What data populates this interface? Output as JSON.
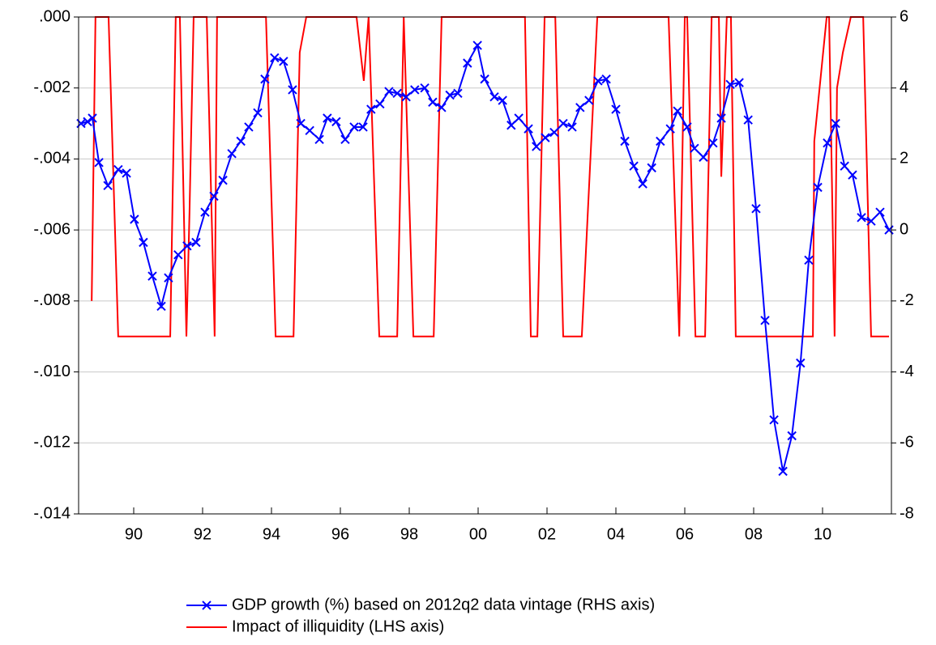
{
  "chart_data": {
    "type": "line",
    "xlim": [
      1988.4,
      2012.0
    ],
    "xticks": [
      {
        "value": 1990,
        "label": "90"
      },
      {
        "value": 1992,
        "label": "92"
      },
      {
        "value": 1994,
        "label": "94"
      },
      {
        "value": 1996,
        "label": "96"
      },
      {
        "value": 1998,
        "label": "98"
      },
      {
        "value": 2000,
        "label": "00"
      },
      {
        "value": 2002,
        "label": "02"
      },
      {
        "value": 2004,
        "label": "04"
      },
      {
        "value": 2006,
        "label": "06"
      },
      {
        "value": 2008,
        "label": "08"
      },
      {
        "value": 2010,
        "label": "10"
      }
    ],
    "ylim": [
      -0.014,
      0
    ],
    "yticks": [
      {
        "value": 0,
        "label": ".000"
      },
      {
        "value": -0.002,
        "label": "-.002"
      },
      {
        "value": -0.004,
        "label": "-.004"
      },
      {
        "value": -0.006,
        "label": "-.006"
      },
      {
        "value": -0.008,
        "label": "-.008"
      },
      {
        "value": -0.01,
        "label": "-.010"
      },
      {
        "value": -0.012,
        "label": "-.012"
      },
      {
        "value": -0.014,
        "label": "-.014"
      }
    ],
    "y2lim": [
      -8,
      6
    ],
    "y2ticks": [
      6,
      4,
      2,
      0,
      -2,
      -4,
      -6,
      -8
    ],
    "grid": true,
    "series": [
      {
        "name": "GDP growth (%) based on 2012q2 data vintage (RHS axis)",
        "color": "#0000ff",
        "axis": "y2",
        "marker": "x",
        "x": [
          1988.47,
          1988.66,
          1988.8,
          1988.99,
          1989.25,
          1989.55,
          1989.79,
          1990.02,
          1990.28,
          1990.54,
          1990.8,
          1991.01,
          1991.29,
          1991.55,
          1991.81,
          1992.07,
          1992.33,
          1992.59,
          1992.85,
          1993.11,
          1993.34,
          1993.6,
          1993.81,
          1994.09,
          1994.35,
          1994.61,
          1994.85,
          1995.11,
          1995.39,
          1995.62,
          1995.88,
          1996.14,
          1996.4,
          1996.66,
          1996.89,
          1997.15,
          1997.41,
          1997.65,
          1997.91,
          1998.16,
          1998.45,
          1998.68,
          1998.94,
          1999.18,
          1999.41,
          1999.69,
          1999.98,
          2000.19,
          2000.47,
          2000.71,
          2000.96,
          2001.18,
          2001.46,
          2001.69,
          2001.95,
          2002.21,
          2002.47,
          2002.73,
          2002.96,
          2003.22,
          2003.48,
          2003.72,
          2004.0,
          2004.26,
          2004.52,
          2004.78,
          2005.04,
          2005.29,
          2005.58,
          2005.79,
          2006.07,
          2006.28,
          2006.54,
          2006.82,
          2007.06,
          2007.32,
          2007.58,
          2007.84,
          2008.07,
          2008.33,
          2008.59,
          2008.85,
          2009.11,
          2009.36,
          2009.6,
          2009.86,
          2010.14,
          2010.38,
          2010.64,
          2010.87,
          2011.13,
          2011.41,
          2011.67,
          2011.93
        ],
        "values": [
          3.0,
          3.05,
          3.15,
          1.9,
          1.25,
          1.7,
          1.6,
          0.3,
          -0.35,
          -1.3,
          -2.15,
          -1.35,
          -0.7,
          -0.45,
          -0.35,
          0.5,
          0.95,
          1.4,
          2.15,
          2.5,
          2.9,
          3.3,
          4.25,
          4.85,
          4.75,
          3.95,
          3.0,
          2.8,
          2.55,
          3.15,
          3.05,
          2.55,
          2.9,
          2.9,
          3.4,
          3.55,
          3.9,
          3.85,
          3.75,
          3.95,
          4.0,
          3.6,
          3.45,
          3.8,
          3.85,
          4.7,
          5.2,
          4.25,
          3.75,
          3.65,
          2.95,
          3.15,
          2.85,
          2.35,
          2.6,
          2.75,
          3.0,
          2.9,
          3.45,
          3.65,
          4.2,
          4.25,
          3.4,
          2.5,
          1.8,
          1.3,
          1.75,
          2.5,
          2.85,
          3.35,
          2.9,
          2.3,
          2.05,
          2.45,
          3.15,
          4.1,
          4.15,
          3.1,
          0.6,
          -2.55,
          -5.35,
          -6.8,
          -5.8,
          -3.75,
          -0.85,
          1.2,
          2.45,
          3.0,
          1.8,
          1.55,
          0.35,
          0.25,
          0.5,
          0.0
        ]
      },
      {
        "name": "Impact of illiquidity (LHS axis)",
        "color": "#ff0000",
        "axis": "y",
        "x": [
          1988.78,
          1988.89,
          1989.27,
          1989.55,
          1991.06,
          1991.22,
          1991.34,
          1991.53,
          1991.62,
          1991.74,
          1992.12,
          1992.35,
          1992.42,
          1993.84,
          1994.12,
          1994.64,
          1994.82,
          1995.01,
          1996.47,
          1996.68,
          1996.82,
          1997.13,
          1997.65,
          1997.84,
          1998.12,
          1998.71,
          1998.94,
          2001.36,
          2001.53,
          2001.72,
          2001.93,
          2002.24,
          2002.47,
          2003.01,
          2003.46,
          2005.53,
          2005.84,
          2006.0,
          2006.07,
          2006.31,
          2006.59,
          2006.78,
          2006.99,
          2007.06,
          2007.22,
          2007.34,
          2007.48,
          2009.72,
          2009.76,
          2010.12,
          2010.19,
          2010.35,
          2010.42,
          2010.59,
          2010.82,
          2011.18,
          2011.41,
          2011.93
        ],
        "values": [
          -0.008,
          0,
          0,
          -0.009,
          -0.009,
          0,
          0,
          -0.009,
          -0.0055,
          0,
          0,
          -0.009,
          0,
          0,
          -0.009,
          -0.009,
          -0.001,
          0,
          0,
          -0.0018,
          0,
          -0.009,
          -0.009,
          0,
          -0.009,
          -0.009,
          0,
          0,
          -0.009,
          -0.009,
          0,
          0,
          -0.009,
          -0.009,
          0,
          0,
          -0.009,
          0,
          0,
          -0.009,
          -0.009,
          0,
          0,
          -0.0045,
          0,
          0,
          -0.009,
          -0.009,
          -0.0035,
          0,
          0,
          -0.009,
          -0.002,
          -0.001,
          0,
          0,
          -0.009,
          -0.009
        ]
      }
    ]
  }
}
